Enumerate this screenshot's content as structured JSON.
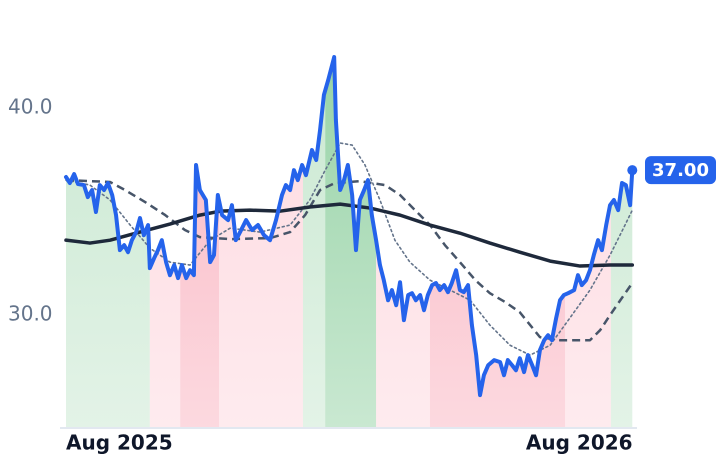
{
  "chart_data": {
    "type": "line",
    "xlim": [
      0,
      13.35
    ],
    "ylim": [
      24.6,
      44.25
    ],
    "xticks": [
      {
        "value": 0,
        "label": "Aug 2025"
      },
      {
        "value": 12,
        "label": "Aug 2026"
      }
    ],
    "yticks": [
      {
        "value": 30,
        "label": "30.0"
      },
      {
        "value": 40,
        "label": "40.0"
      }
    ],
    "regions": [
      {
        "start": 0,
        "end": 1.96,
        "color": "#c7e7cf"
      },
      {
        "start": 1.96,
        "end": 2.67,
        "color": "#fdd7de"
      },
      {
        "start": 2.67,
        "end": 3.58,
        "color": "#f9b3c0"
      },
      {
        "start": 3.58,
        "end": 5.54,
        "color": "#fdd7de"
      },
      {
        "start": 5.54,
        "end": 6.06,
        "color": "#c7e7cf"
      },
      {
        "start": 6.06,
        "end": 7.25,
        "color": "#93d1a3"
      },
      {
        "start": 7.25,
        "end": 8.51,
        "color": "#fdd7de"
      },
      {
        "start": 8.51,
        "end": 11.67,
        "color": "#f9b3c0"
      },
      {
        "start": 11.67,
        "end": 12.74,
        "color": "#fdd7de"
      },
      {
        "start": 12.74,
        "end": 13.26,
        "color": "#c7e7cf"
      }
    ],
    "series": [
      {
        "style": "dotted",
        "color": "#64748b",
        "x": [
          0,
          0.56,
          1.03,
          1.5,
          1.96,
          2.43,
          2.9,
          3.37,
          3.84,
          4.54,
          5.24,
          5.7,
          6.06,
          6.41,
          6.69,
          6.99,
          7.34,
          7.69,
          8.04,
          8.51,
          8.98,
          9.45,
          9.91,
          10.38,
          10.85,
          11.32,
          11.78,
          12.25,
          12.72,
          13.07,
          13.24
        ],
        "values": [
          36.52,
          36.28,
          35.56,
          34.35,
          33.24,
          32.56,
          32.42,
          33.62,
          34.2,
          34.01,
          34.35,
          35.56,
          37.0,
          38.31,
          38.21,
          37.25,
          35.56,
          33.62,
          32.56,
          31.69,
          31.21,
          30.72,
          29.52,
          28.55,
          28.07,
          28.55,
          29.86,
          31.21,
          32.9,
          34.35,
          35.07
        ]
      },
      {
        "style": "dashed",
        "color": "#475569",
        "x": [
          0,
          1.03,
          1.38,
          1.85,
          2.32,
          2.78,
          3.13,
          3.84,
          4.77,
          5.24,
          5.59,
          5.94,
          6.29,
          6.87,
          7.46,
          7.81,
          8.16,
          8.51,
          8.86,
          9.21,
          9.57,
          9.91,
          10.27,
          10.61,
          11.08,
          11.55,
          12.25,
          12.49,
          12.72,
          12.96,
          13.24
        ],
        "values": [
          36.52,
          36.43,
          36.04,
          35.46,
          34.83,
          34.11,
          33.77,
          33.67,
          33.72,
          34.01,
          34.83,
          36.04,
          36.38,
          36.47,
          36.28,
          35.8,
          35.07,
          34.35,
          33.38,
          32.56,
          31.69,
          31.06,
          30.63,
          30.14,
          28.94,
          28.79,
          28.79,
          29.28,
          30.0,
          30.72,
          31.55
        ]
      },
      {
        "style": "solid",
        "width": 3.5,
        "color": "#1e293b",
        "x": [
          0,
          0.56,
          1.03,
          1.73,
          2.43,
          3.13,
          3.6,
          4.3,
          5.0,
          5.7,
          6.41,
          7.11,
          7.81,
          8.51,
          9.21,
          9.91,
          10.61,
          11.32,
          12.02,
          12.72,
          13.24
        ],
        "values": [
          33.62,
          33.48,
          33.62,
          34.01,
          34.4,
          34.83,
          35.02,
          35.07,
          35.02,
          35.22,
          35.36,
          35.17,
          34.83,
          34.35,
          33.96,
          33.48,
          33.04,
          32.61,
          32.37,
          32.42,
          32.42
        ]
      },
      {
        "style": "solid",
        "width": 4,
        "color": "#2563eb",
        "area": true,
        "x": [
          0,
          0.09,
          0.19,
          0.28,
          0.42,
          0.51,
          0.61,
          0.7,
          0.79,
          0.89,
          0.98,
          1.08,
          1.17,
          1.26,
          1.36,
          1.45,
          1.54,
          1.64,
          1.73,
          1.82,
          1.92,
          1.96,
          2.06,
          2.15,
          2.24,
          2.34,
          2.43,
          2.53,
          2.62,
          2.71,
          2.81,
          2.9,
          2.99,
          3.04,
          3.13,
          3.27,
          3.37,
          3.46,
          3.55,
          3.65,
          3.79,
          3.88,
          3.97,
          4.07,
          4.21,
          4.35,
          4.49,
          4.63,
          4.77,
          4.91,
          5.05,
          5.14,
          5.24,
          5.33,
          5.42,
          5.52,
          5.61,
          5.75,
          5.85,
          5.94,
          6.03,
          6.13,
          6.27,
          6.31,
          6.41,
          6.5,
          6.59,
          6.69,
          6.78,
          6.87,
          6.97,
          7.06,
          7.15,
          7.25,
          7.34,
          7.43,
          7.53,
          7.62,
          7.72,
          7.81,
          7.9,
          8.0,
          8.09,
          8.18,
          8.28,
          8.37,
          8.46,
          8.56,
          8.65,
          8.74,
          8.84,
          8.93,
          9.02,
          9.12,
          9.21,
          9.3,
          9.4,
          9.49,
          9.59,
          9.68,
          9.77,
          9.87,
          10.01,
          10.15,
          10.24,
          10.33,
          10.43,
          10.52,
          10.61,
          10.71,
          10.8,
          10.9,
          10.99,
          11.08,
          11.18,
          11.27,
          11.36,
          11.46,
          11.55,
          11.64,
          11.74,
          11.88,
          11.97,
          12.06,
          12.16,
          12.25,
          12.34,
          12.44,
          12.53,
          12.63,
          12.72,
          12.81,
          12.91,
          13.0,
          13.09,
          13.19,
          13.24
        ],
        "values": [
          36.67,
          36.38,
          36.81,
          36.33,
          36.28,
          35.7,
          36.04,
          34.98,
          36.28,
          36.04,
          36.38,
          35.8,
          34.83,
          33.14,
          33.38,
          33.04,
          33.62,
          34.01,
          34.69,
          33.86,
          34.35,
          32.27,
          32.75,
          33.14,
          33.62,
          32.56,
          31.93,
          32.42,
          31.79,
          32.42,
          31.79,
          32.17,
          31.93,
          37.25,
          36.04,
          35.56,
          32.56,
          32.9,
          35.8,
          34.83,
          34.59,
          35.31,
          33.62,
          34.01,
          34.59,
          34.11,
          34.35,
          33.86,
          33.62,
          34.59,
          35.8,
          36.28,
          36.04,
          37.0,
          36.52,
          37.25,
          36.76,
          37.97,
          37.49,
          38.94,
          40.63,
          41.35,
          42.46,
          39.42,
          36.04,
          36.52,
          37.25,
          35.8,
          33.14,
          35.56,
          36.04,
          36.52,
          34.83,
          33.62,
          32.42,
          31.69,
          30.72,
          31.21,
          30.48,
          31.59,
          29.76,
          30.97,
          31.06,
          30.72,
          30.97,
          30.24,
          30.97,
          31.45,
          31.55,
          31.21,
          31.45,
          31.11,
          31.55,
          32.17,
          31.21,
          31.11,
          31.45,
          29.52,
          28.07,
          26.14,
          27.1,
          27.58,
          27.83,
          27.73,
          27.1,
          27.83,
          27.58,
          27.34,
          27.92,
          27.25,
          28.07,
          27.58,
          27.1,
          28.31,
          28.79,
          29.03,
          28.79,
          29.86,
          30.72,
          30.97,
          31.06,
          31.21,
          31.93,
          31.45,
          31.69,
          32.17,
          32.9,
          33.62,
          33.14,
          34.35,
          35.31,
          35.56,
          35.07,
          36.38,
          36.28,
          35.31,
          37.0
        ]
      },
      {
        "style": "marker",
        "color": "#2563eb",
        "x": [
          13.24
        ],
        "values": [
          37.0
        ],
        "value_labels": [
          "37.00"
        ]
      }
    ]
  }
}
